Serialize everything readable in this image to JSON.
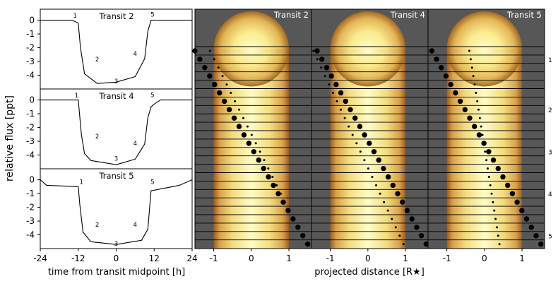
{
  "chart_data": [
    {
      "type": "line",
      "title": "Transit 2",
      "ylabel": "relative flux [ppt]",
      "xlabel": "",
      "xlim": [
        -24,
        24
      ],
      "ylim": [
        -5,
        0.8
      ],
      "xticks": [
        "-24",
        "-12",
        "0",
        "12",
        "24"
      ],
      "yticks": [
        "0",
        "-1",
        "-2",
        "-3",
        "-4"
      ],
      "x": [
        -24,
        -14,
        -12,
        -11.3,
        -10,
        -6,
        0,
        6,
        9,
        10,
        11,
        24
      ],
      "y": [
        0,
        0,
        -0.2,
        -2.0,
        -3.9,
        -4.6,
        -4.5,
        -4.1,
        -2.8,
        -0.8,
        0,
        0
      ],
      "contact_labels": [
        "1",
        "2",
        "3",
        "4",
        "5"
      ]
    },
    {
      "type": "line",
      "title": "Transit 4",
      "ylabel": "relative flux [ppt]",
      "xlabel": "",
      "xlim": [
        -24,
        24
      ],
      "ylim": [
        -5,
        0.8
      ],
      "xticks": [
        "-24",
        "-12",
        "0",
        "12",
        "24"
      ],
      "yticks": [
        "0",
        "-1",
        "-2",
        "-3",
        "-4"
      ],
      "x": [
        -24,
        -12,
        -11,
        -10,
        -8,
        0,
        6,
        9,
        10,
        11,
        12,
        14,
        24
      ],
      "y": [
        0,
        0,
        -2.5,
        -3.9,
        -4.4,
        -4.7,
        -4.3,
        -3.2,
        -1.3,
        -0.5,
        -0.3,
        0,
        0
      ],
      "contact_labels": [
        "1",
        "2",
        "3",
        "4",
        "5"
      ]
    },
    {
      "type": "line",
      "title": "Transit 5",
      "ylabel": "relative flux [ppt]",
      "xlabel": "time from transit midpoint [h]",
      "xlim": [
        -24,
        24
      ],
      "ylim": [
        -5,
        0.8
      ],
      "xticks": [
        "-24",
        "-12",
        "0",
        "12",
        "24"
      ],
      "yticks": [
        "0",
        "-1",
        "-2",
        "-3",
        "-4"
      ],
      "x": [
        -24,
        -22,
        -12,
        -11.5,
        -10.5,
        -8,
        0,
        8,
        10,
        11,
        20,
        24
      ],
      "y": [
        0,
        -0.4,
        -0.5,
        -1.8,
        -3.8,
        -4.5,
        -4.7,
        -4.4,
        -3.6,
        -0.8,
        -0.4,
        0
      ],
      "contact_labels": [
        "1",
        "2",
        "3",
        "4",
        "5"
      ]
    },
    {
      "type": "scatter",
      "title": "Transit 2",
      "xlabel": "",
      "xlim": [
        -1.5,
        1.6
      ],
      "xticks": [
        "-1",
        "0",
        "1"
      ],
      "big_x": [
        -1.5,
        1.5
      ],
      "small_x": [
        -1.1,
        1.45
      ]
    },
    {
      "type": "scatter",
      "title": "Transit 4",
      "xlabel": "projected distance [R★]",
      "xlim": [
        -1.5,
        1.6
      ],
      "xticks": [
        "-1",
        "0",
        "1"
      ],
      "big_x": [
        -1.35,
        1.55
      ],
      "small_x": [
        -1.45,
        0.95
      ]
    },
    {
      "type": "scatter",
      "title": "Transit 5",
      "xlabel": "",
      "xlim": [
        -1.5,
        1.6
      ],
      "xticks": [
        "-1",
        "0",
        "1"
      ],
      "big_x": [
        -1.4,
        1.5
      ],
      "small_x": [
        -0.4,
        0.4
      ],
      "row_labels": [
        "1",
        "2",
        "3",
        "4",
        "5"
      ]
    }
  ]
}
